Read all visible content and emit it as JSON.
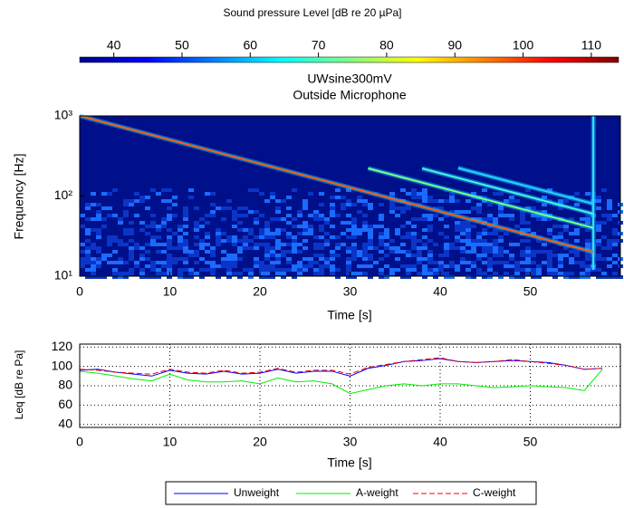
{
  "chart_data": [
    {
      "type": "colorbar",
      "title": "Sound pressure Level  [dB re 20 µPa]",
      "colormap": "jet",
      "clim": [
        35,
        114
      ],
      "xticks": [
        40,
        50,
        60,
        70,
        80,
        90,
        100,
        110
      ]
    },
    {
      "type": "spectrogram",
      "title": "UWsine300mV",
      "subtitle": "Outside Microphone",
      "xlabel": "Time   [s]",
      "ylabel": "Frequency   [Hz]",
      "background": "#00108a",
      "xlim": [
        0,
        60
      ],
      "xticks": [
        0,
        10,
        20,
        30,
        40,
        50
      ],
      "ylim": [
        10,
        1000
      ],
      "log_y": true,
      "yticks": [
        {
          "value": 10,
          "label": "10¹"
        },
        {
          "value": 100,
          "label": "10²"
        },
        {
          "value": 1000,
          "label": "10³"
        }
      ],
      "series": [
        {
          "color": "#40e0ff",
          "x": [
            57,
            57
          ],
          "values": [
            12,
            1000
          ]
        },
        {
          "color": "#30d0ff",
          "x": [
            42,
            57
          ],
          "values": [
            224,
            80
          ]
        },
        {
          "color": "#50f0e0",
          "x": [
            38,
            57
          ],
          "values": [
            221,
            60
          ]
        },
        {
          "color": "#80ff80",
          "x": [
            32,
            57
          ],
          "values": [
            222,
            40
          ]
        },
        {
          "color": "#ff6010",
          "x": [
            0,
            57
          ],
          "values": [
            1000,
            20
          ]
        }
      ]
    },
    {
      "type": "line",
      "xlabel": "Time   [s]",
      "ylabel": "Leq   [dB re Pa]",
      "grid": true,
      "legend": "bottom",
      "xlim": [
        0,
        60
      ],
      "xticks": [
        0,
        10,
        20,
        30,
        40,
        50
      ],
      "ylim": [
        37,
        123
      ],
      "yticks": [
        40,
        60,
        80,
        100,
        120
      ],
      "x": [
        0,
        2,
        4,
        6,
        8,
        10,
        12,
        14,
        16,
        18,
        20,
        22,
        24,
        26,
        28,
        30,
        32,
        34,
        36,
        38,
        40,
        42,
        44,
        46,
        48,
        50,
        52,
        54,
        56,
        58
      ],
      "series": [
        {
          "name": "Unweight",
          "color": "#0000ff",
          "dashed": false,
          "values": [
            96,
            97,
            94,
            92,
            90,
            96,
            93,
            92,
            95,
            92,
            93,
            97,
            93,
            95,
            95,
            90,
            98,
            101,
            105,
            106,
            108,
            105,
            104,
            105,
            106,
            105,
            104,
            101,
            97,
            98
          ]
        },
        {
          "name": "A-weight",
          "color": "#00ee00",
          "dashed": false,
          "values": [
            95,
            93,
            90,
            87,
            85,
            92,
            86,
            84,
            84,
            85,
            82,
            88,
            84,
            85,
            82,
            72,
            76,
            80,
            82,
            80,
            82,
            82,
            80,
            78,
            79,
            80,
            79,
            78,
            75,
            97
          ]
        },
        {
          "name": "C-weight",
          "color": "#ff0000",
          "dashed": true,
          "values": [
            97,
            96,
            94,
            93,
            92,
            97,
            94,
            93,
            96,
            93,
            94,
            98,
            94,
            96,
            96,
            92,
            99,
            102,
            105,
            107,
            109,
            105,
            104,
            105,
            107,
            105,
            103,
            101,
            97,
            98
          ]
        }
      ]
    }
  ]
}
